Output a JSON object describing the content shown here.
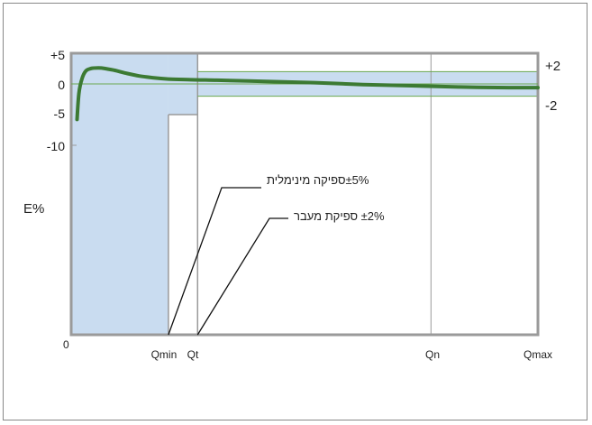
{
  "chart_data": {
    "type": "line",
    "title": "",
    "ylabel": "E%",
    "xlabel": "",
    "x_ticks": [
      "0",
      "Qmin",
      "Qt",
      "Qn",
      "Qmax"
    ],
    "y_ticks": [
      "+5",
      "0",
      "-5",
      "-10"
    ],
    "right_ticks": [
      "+2",
      "-2"
    ],
    "ylim": [
      -10,
      5
    ],
    "tolerance_bands": [
      {
        "name": "±5% ספיקה מינימלית",
        "from": "0",
        "to": "Qt",
        "upper": 5,
        "lower": -5
      },
      {
        "name": "±2% ספיקת מעבר",
        "from": "Qt",
        "to": "Qmax",
        "upper": 2,
        "lower": -2
      }
    ],
    "series": [
      {
        "x": [
          0.06,
          0.08,
          0.11,
          0.15,
          0.2,
          0.28,
          0.35,
          0.45,
          0.55,
          0.7,
          0.85,
          1.0,
          1.2,
          1.5,
          2.0,
          2.5,
          3.0,
          3.5,
          4.0,
          4.5,
          4.8
        ],
        "y": [
          -5.8,
          -1.5,
          0.8,
          2.1,
          2.5,
          2.6,
          2.5,
          2.2,
          1.8,
          1.3,
          1.0,
          0.8,
          0.7,
          0.6,
          0.4,
          0.2,
          -0.1,
          -0.3,
          -0.5,
          -0.6,
          -0.6
        ]
      }
    ],
    "x_positions": {
      "Qmin": 1.0,
      "Qt": 1.3,
      "Qn": 3.7,
      "Qmax": 4.8
    },
    "annotations": [
      {
        "text": "±5%ספיקה מינימלית"
      },
      {
        "text": "±2% ספיקת מעבר"
      }
    ],
    "colors": {
      "band": "#c9dcf0",
      "line": "#3c7a33",
      "frame": "#9a9a9a",
      "zero_line": "#6aa84f"
    }
  }
}
